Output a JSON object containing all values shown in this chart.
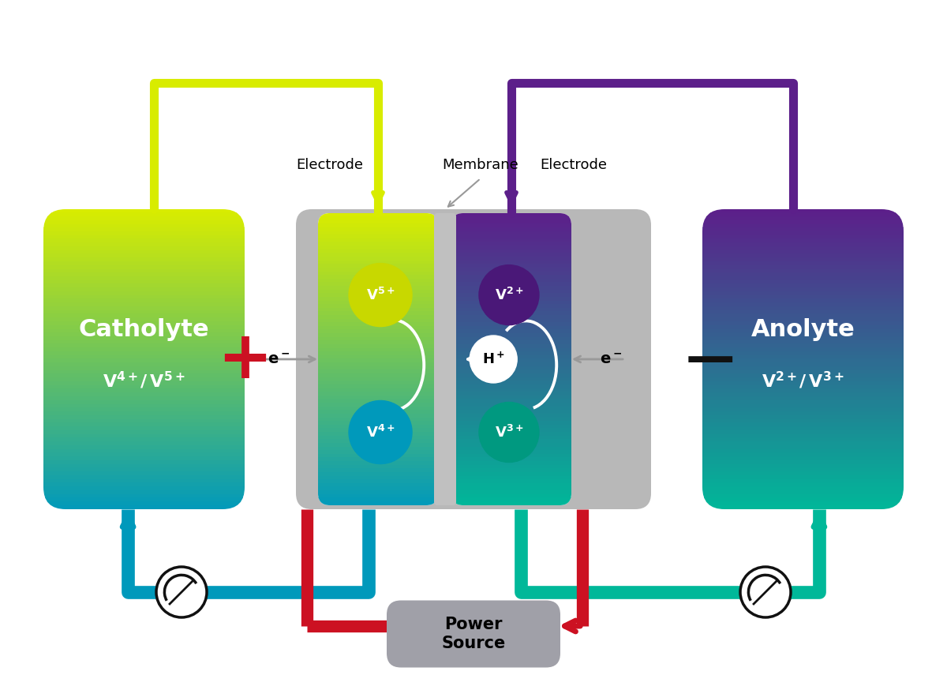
{
  "bg_color": "#ffffff",
  "catholyte_label": "Catholyte",
  "catholyte_sublabel": "V⁴⁺/ V⁵⁺",
  "anolyte_label": "Anolyte",
  "anolyte_sublabel": "V²⁺/ V³⁺",
  "membrane_label": "Membrane",
  "electrode_label": "Electrode",
  "power_source_label": "Power\nSource",
  "catholyte_top": "#d8ec00",
  "catholyte_bot": "#0099bb",
  "anolyte_top": "#5c1f8a",
  "anolyte_bot": "#00b899",
  "v5_color": "#c8d800",
  "v4_color": "#0099bb",
  "v2_color": "#4a1878",
  "v3_color": "#009980",
  "plus_color": "#cc1122",
  "minus_color": "#111111",
  "wire_cathode": "#d8ec00",
  "wire_anode": "#5c1f8a",
  "pipe_cathode": "#0099bb",
  "pipe_anode": "#00b899",
  "red_pipe": "#cc1122",
  "gray_electrode": "#b8b8b8",
  "gray_membrane": "#c0c0c0",
  "pump_color": "#111111",
  "power_box_color": "#a0a0a8"
}
